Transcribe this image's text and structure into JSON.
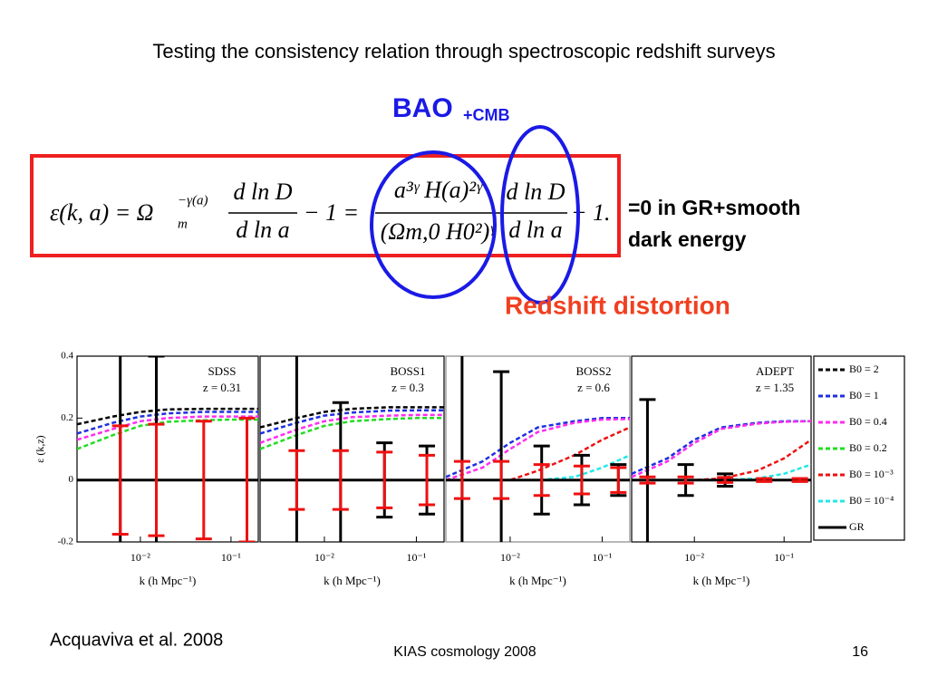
{
  "header": {
    "title": "Testing the consistency relation through spectroscopic redshift surveys"
  },
  "annotations": {
    "bao": "BAO",
    "bao_sub": "+CMB",
    "gr_line1": "=0 in GR+smooth",
    "gr_line2": "dark energy",
    "rsd": "Redshift distortion"
  },
  "equation": {
    "lhs": "ε(k, a) = Ω",
    "omega_sup": "−γ(a)",
    "omega_sub": "m",
    "frac1_num": "d ln D",
    "frac1_den": "d ln a",
    "mid": "− 1 =",
    "frac2_num": "a³ᵞ H(a)²ᵞ",
    "frac2_den": "(Ωm,0 H0²)ᵞ",
    "frac3_num": "d ln D",
    "frac3_den": "d ln a",
    "end": "− 1."
  },
  "footer": {
    "citation": "Acquaviva et al. 2008",
    "event": "KIAS cosmology 2008",
    "page": "16"
  },
  "legend": [
    {
      "name": "B0 = 2",
      "color": "#000000",
      "style": "dashed"
    },
    {
      "name": "B0 = 1",
      "color": "#1f2fe0",
      "style": "dashed"
    },
    {
      "name": "B0 = 0.4",
      "color": "#ff2cf0",
      "style": "dashed"
    },
    {
      "name": "B0 = 0.2",
      "color": "#22dd22",
      "style": "dashed"
    },
    {
      "name": "B0 = 10⁻³",
      "color": "#ee1111",
      "style": "dashed"
    },
    {
      "name": "B0 = 10⁻⁴",
      "color": "#22e8e8",
      "style": "dashed"
    },
    {
      "name": "GR",
      "color": "#000000",
      "style": "solid"
    }
  ],
  "chart_data": [
    {
      "type": "line",
      "title": "SDSS",
      "subtitle": "z = 0.31",
      "xlabel": "k (h Mpc⁻¹)",
      "ylabel": "ε (k,z)",
      "xscale": "log",
      "xlim": [
        0.002,
        0.2
      ],
      "ylim": [
        -0.2,
        0.4
      ],
      "yticks": [
        -0.2,
        0,
        0.2,
        0.4
      ],
      "xticks": [
        {
          "value": 0.01,
          "label": "10⁻²"
        },
        {
          "value": 0.1,
          "label": "10⁻¹"
        }
      ],
      "x": [
        0.002,
        0.005,
        0.01,
        0.02,
        0.05,
        0.1,
        0.2
      ],
      "series": [
        {
          "name": "B0 = 2",
          "color": "#000000",
          "style": "dashed",
          "values": [
            0.18,
            0.205,
            0.22,
            0.228,
            0.23,
            0.23,
            0.23
          ]
        },
        {
          "name": "B0 = 1",
          "color": "#1f2fe0",
          "style": "dashed",
          "values": [
            0.15,
            0.185,
            0.205,
            0.215,
            0.22,
            0.22,
            0.22
          ]
        },
        {
          "name": "B0 = 0.4",
          "color": "#ff2cf0",
          "style": "dashed",
          "values": [
            0.13,
            0.165,
            0.19,
            0.2,
            0.205,
            0.205,
            0.205
          ]
        },
        {
          "name": "B0 = 0.2",
          "color": "#22dd22",
          "style": "dashed",
          "values": [
            0.1,
            0.145,
            0.175,
            0.188,
            0.193,
            0.195,
            0.195
          ]
        },
        {
          "name": "GR",
          "color": "#000000",
          "style": "solid",
          "values": [
            0,
            0,
            0,
            0,
            0,
            0,
            0
          ]
        }
      ],
      "errorbars": [
        {
          "color": "#000000",
          "x": [
            0.006,
            0.015
          ],
          "values": [
            0,
            0
          ],
          "errors": [
            0.6,
            0.4
          ]
        },
        {
          "color": "#ee1111",
          "x": [
            0.006,
            0.015,
            0.05,
            0.15
          ],
          "values": [
            0,
            0,
            0,
            0
          ],
          "errors": [
            0.175,
            0.18,
            0.19,
            0.2
          ]
        }
      ]
    },
    {
      "type": "line",
      "title": "BOSS1",
      "subtitle": "z = 0.3",
      "xlabel": "k (h Mpc⁻¹)",
      "xscale": "log",
      "xlim": [
        0.002,
        0.2
      ],
      "ylim": [
        -0.2,
        0.4
      ],
      "xticks": [
        {
          "value": 0.01,
          "label": "10⁻²"
        },
        {
          "value": 0.1,
          "label": "10⁻¹"
        }
      ],
      "x": [
        0.002,
        0.005,
        0.01,
        0.02,
        0.05,
        0.1,
        0.2
      ],
      "series": [
        {
          "name": "B0 = 2",
          "color": "#000000",
          "style": "dashed",
          "values": [
            0.17,
            0.2,
            0.22,
            0.23,
            0.235,
            0.235,
            0.235
          ]
        },
        {
          "name": "B0 = 1",
          "color": "#1f2fe0",
          "style": "dashed",
          "values": [
            0.15,
            0.185,
            0.208,
            0.218,
            0.224,
            0.225,
            0.225
          ]
        },
        {
          "name": "B0 = 0.4",
          "color": "#ff2cf0",
          "style": "dashed",
          "values": [
            0.12,
            0.163,
            0.19,
            0.203,
            0.208,
            0.21,
            0.21
          ]
        },
        {
          "name": "B0 = 0.2",
          "color": "#22dd22",
          "style": "dashed",
          "values": [
            0.1,
            0.145,
            0.175,
            0.19,
            0.197,
            0.2,
            0.2
          ]
        },
        {
          "name": "GR",
          "color": "#000000",
          "style": "solid",
          "values": [
            0,
            0,
            0,
            0,
            0,
            0,
            0
          ]
        }
      ],
      "errorbars": [
        {
          "color": "#000000",
          "x": [
            0.005,
            0.015,
            0.045,
            0.13
          ],
          "values": [
            0,
            0,
            0,
            0
          ],
          "errors": [
            0.6,
            0.25,
            0.12,
            0.11
          ]
        },
        {
          "color": "#ee1111",
          "x": [
            0.005,
            0.015,
            0.045,
            0.13
          ],
          "values": [
            0,
            0,
            0,
            0
          ],
          "errors": [
            0.095,
            0.095,
            0.09,
            0.08
          ]
        }
      ]
    },
    {
      "type": "line",
      "title": "BOSS2",
      "subtitle": "z = 0.6",
      "xlabel": "k (h Mpc⁻¹)",
      "xscale": "log",
      "xlim": [
        0.002,
        0.2
      ],
      "ylim": [
        -0.2,
        0.4
      ],
      "xticks": [
        {
          "value": 0.01,
          "label": "10⁻²"
        },
        {
          "value": 0.1,
          "label": "10⁻¹"
        }
      ],
      "x": [
        0.002,
        0.005,
        0.01,
        0.02,
        0.05,
        0.1,
        0.2
      ],
      "series": [
        {
          "name": "B0 = 1",
          "color": "#1f2fe0",
          "style": "dashed",
          "values": [
            0.01,
            0.06,
            0.12,
            0.17,
            0.19,
            0.2,
            0.2
          ]
        },
        {
          "name": "B0 = 0.4",
          "color": "#ff2cf0",
          "style": "dashed",
          "values": [
            0,
            0.04,
            0.1,
            0.155,
            0.185,
            0.195,
            0.197
          ]
        },
        {
          "name": "B0 = 10⁻³",
          "color": "#ee1111",
          "style": "dashed",
          "values": [
            0,
            0,
            0,
            0.03,
            0.08,
            0.13,
            0.17
          ]
        },
        {
          "name": "B0 = 10⁻⁴",
          "color": "#22e8e8",
          "style": "dashed",
          "values": [
            0,
            0,
            0,
            0,
            0.01,
            0.04,
            0.08
          ]
        },
        {
          "name": "GR",
          "color": "#000000",
          "style": "solid",
          "values": [
            0,
            0,
            0,
            0,
            0,
            0,
            0
          ]
        }
      ],
      "errorbars": [
        {
          "color": "#000000",
          "x": [
            0.003,
            0.008,
            0.022,
            0.06,
            0.15
          ],
          "values": [
            0,
            0,
            0,
            0,
            0
          ],
          "errors": [
            0.6,
            0.35,
            0.11,
            0.08,
            0.05
          ]
        },
        {
          "color": "#ee1111",
          "x": [
            0.003,
            0.008,
            0.022,
            0.06,
            0.15
          ],
          "values": [
            0,
            0,
            0,
            0,
            0
          ],
          "errors": [
            0.06,
            0.06,
            0.05,
            0.045,
            0.04
          ]
        }
      ]
    },
    {
      "type": "line",
      "title": "ADEPT",
      "subtitle": "z = 1.35",
      "xlabel": "k (h Mpc⁻¹)",
      "xscale": "log",
      "xlim": [
        0.002,
        0.2
      ],
      "ylim": [
        -0.2,
        0.4
      ],
      "xticks": [
        {
          "value": 0.01,
          "label": "10⁻²"
        },
        {
          "value": 0.1,
          "label": "10⁻¹"
        }
      ],
      "x": [
        0.002,
        0.005,
        0.01,
        0.02,
        0.05,
        0.1,
        0.2
      ],
      "series": [
        {
          "name": "B0 = 1",
          "color": "#1f2fe0",
          "style": "dashed",
          "values": [
            0.02,
            0.07,
            0.13,
            0.17,
            0.185,
            0.19,
            0.19
          ]
        },
        {
          "name": "B0 = 0.4",
          "color": "#ff2cf0",
          "style": "dashed",
          "values": [
            0.01,
            0.06,
            0.12,
            0.165,
            0.182,
            0.188,
            0.19
          ]
        },
        {
          "name": "B0 = 10⁻³",
          "color": "#ee1111",
          "style": "dashed",
          "values": [
            0,
            0,
            0,
            0.005,
            0.03,
            0.07,
            0.13
          ]
        },
        {
          "name": "B0 = 10⁻⁴",
          "color": "#22e8e8",
          "style": "dashed",
          "values": [
            0,
            0,
            0,
            0,
            0.005,
            0.02,
            0.05
          ]
        },
        {
          "name": "GR",
          "color": "#000000",
          "style": "solid",
          "values": [
            0,
            0,
            0,
            0,
            0,
            0,
            0
          ]
        }
      ],
      "errorbars": [
        {
          "color": "#000000",
          "x": [
            0.003,
            0.008,
            0.022
          ],
          "values": [
            0,
            0,
            0
          ],
          "errors": [
            0.26,
            0.05,
            0.02
          ]
        },
        {
          "color": "#ee1111",
          "x": [
            0.003,
            0.008,
            0.022,
            0.06,
            0.15
          ],
          "values": [
            0,
            0,
            0,
            0,
            0
          ],
          "errors": [
            0.01,
            0.01,
            0.008,
            0.005,
            0.005
          ]
        }
      ]
    }
  ]
}
